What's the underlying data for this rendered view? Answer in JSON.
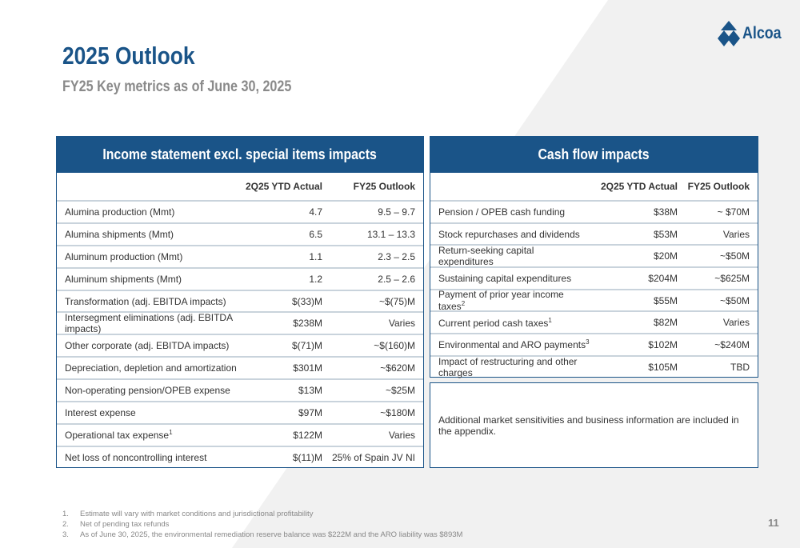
{
  "header": {
    "title": "2025 Outlook",
    "subtitle": "FY25 Key metrics as of June 30, 2025",
    "logo": "Alcoa"
  },
  "brand_color": "#1a5488",
  "income": {
    "title": "Income statement excl. special items impacts",
    "col1": "2Q25 YTD Actual",
    "col2": "FY25 Outlook",
    "rows": [
      {
        "label": "Alumina production (Mmt)",
        "actual": "4.7",
        "outlook": "9.5 – 9.7"
      },
      {
        "label": "Alumina shipments (Mmt)",
        "actual": "6.5",
        "outlook": "13.1 – 13.3"
      },
      {
        "label": "Aluminum production (Mmt)",
        "actual": "1.1",
        "outlook": "2.3 – 2.5"
      },
      {
        "label": "Aluminum shipments (Mmt)",
        "actual": "1.2",
        "outlook": "2.5 – 2.6"
      },
      {
        "label": "Transformation (adj. EBITDA impacts)",
        "actual": "$(33)M",
        "outlook": "~$(75)M"
      },
      {
        "label": "Intersegment eliminations (adj. EBITDA impacts)",
        "actual": "$238M",
        "outlook": "Varies"
      },
      {
        "label": "Other corporate (adj. EBITDA impacts)",
        "actual": "$(71)M",
        "outlook": "~$(160)M"
      },
      {
        "label": "Depreciation, depletion and amortization",
        "actual": "$301M",
        "outlook": "~$620M"
      },
      {
        "label": "Non-operating pension/OPEB expense",
        "actual": "$13M",
        "outlook": "~$25M"
      },
      {
        "label": "Interest expense",
        "actual": "$97M",
        "outlook": "~$180M"
      },
      {
        "label": "Operational tax expense",
        "sup": "1",
        "actual": "$122M",
        "outlook": "Varies"
      },
      {
        "label": "Net loss of noncontrolling interest",
        "actual": "$(11)M",
        "outlook": "25% of Spain JV NI"
      }
    ]
  },
  "cash": {
    "title": "Cash flow impacts",
    "col1": "2Q25 YTD Actual",
    "col2": "FY25 Outlook",
    "rows": [
      {
        "label": "Pension / OPEB cash funding",
        "actual": "$38M",
        "outlook": "~ $70M"
      },
      {
        "label": "Stock repurchases and dividends",
        "actual": "$53M",
        "outlook": "Varies"
      },
      {
        "label": "Return-seeking capital expenditures",
        "actual": "$20M",
        "outlook": "~$50M"
      },
      {
        "label": "Sustaining capital expenditures",
        "actual": "$204M",
        "outlook": "~$625M"
      },
      {
        "label": "Payment of prior year income taxes",
        "sup": "2",
        "actual": "$55M",
        "outlook": "~$50M"
      },
      {
        "label": "Current period cash taxes",
        "sup": "1",
        "actual": "$82M",
        "outlook": "Varies"
      },
      {
        "label": "Environmental and ARO payments",
        "sup": "3",
        "actual": "$102M",
        "outlook": "~$240M"
      },
      {
        "label": "Impact of restructuring and other charges",
        "actual": "$105M",
        "outlook": "TBD"
      }
    ],
    "note": "Additional market sensitivities and business information are included in the appendix."
  },
  "footnotes": [
    {
      "num": "1.",
      "text": "Estimate will vary with market conditions and jurisdictional profitability"
    },
    {
      "num": "2.",
      "text": "Net of pending tax refunds"
    },
    {
      "num": "3.",
      "text": "As of June 30, 2025, the environmental remediation reserve balance was $222M and the ARO liability was $893M"
    }
  ],
  "page_number": "11"
}
